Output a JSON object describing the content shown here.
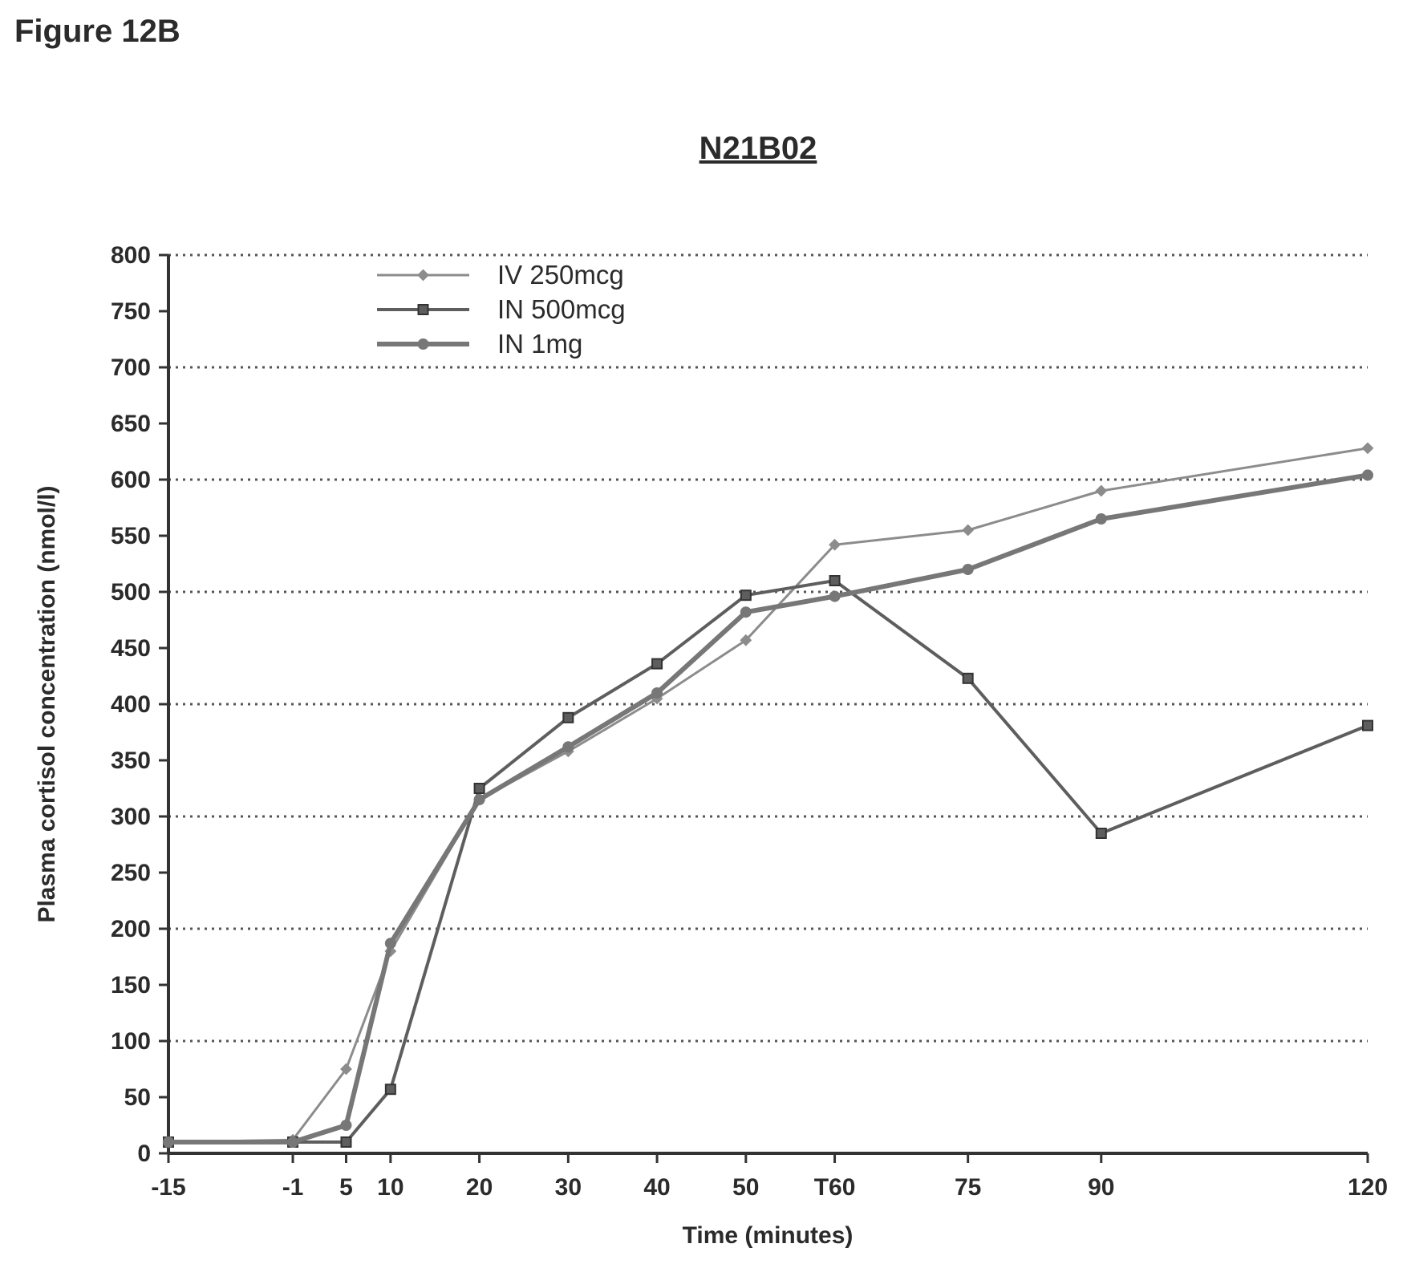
{
  "figure_label": "Figure 12B",
  "chart_data": {
    "type": "line",
    "title": "N21B02",
    "xlabel": "Time (minutes)",
    "ylabel": "Plasma cortisol concentration (nmol/l)",
    "categories": [
      "-15",
      "-1",
      "5",
      "10",
      "20",
      "30",
      "40",
      "50",
      "T60",
      "75",
      "90",
      "120"
    ],
    "x": [
      -15,
      -1,
      5,
      10,
      20,
      30,
      40,
      50,
      60,
      75,
      90,
      120
    ],
    "ylim": [
      0,
      800
    ],
    "yticks": [
      "0",
      "50",
      "100",
      "150",
      "200",
      "250",
      "300",
      "350",
      "400",
      "450",
      "500",
      "550",
      "600",
      "650",
      "700",
      "750",
      "800"
    ],
    "grid": "horizontal dotted at every 100",
    "legend_position": "top-left",
    "series": [
      {
        "name": "IV 250mcg",
        "values": [
          10,
          12,
          75,
          180,
          315,
          358,
          405,
          457,
          542,
          555,
          590,
          628
        ],
        "color": "#8c8c8c",
        "marker": "diamond"
      },
      {
        "name": "IN 500mcg",
        "values": [
          10,
          10,
          10,
          57,
          325,
          388,
          436,
          497,
          510,
          423,
          285,
          381
        ],
        "color": "#5e5e5e",
        "marker": "square"
      },
      {
        "name": "IN 1mg",
        "values": [
          10,
          10,
          25,
          187,
          315,
          362,
          410,
          482,
          496,
          520,
          565,
          604
        ],
        "color": "#777777",
        "marker": "circle"
      }
    ]
  }
}
